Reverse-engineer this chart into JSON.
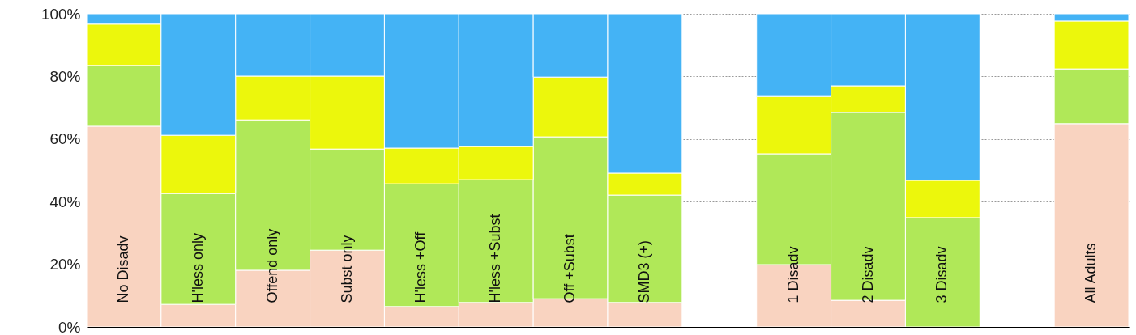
{
  "chart_data": {
    "type": "bar",
    "stacked": true,
    "categories": [
      "No Disadv",
      "H'less only",
      "Offend only",
      "Subst only",
      "H'less +Off",
      "H'less +Subst",
      "Off +Subst",
      "SMD3 (+)",
      null,
      "1 Disadv",
      "2 Disadv",
      "3 Disadv",
      null,
      "All Adults"
    ],
    "series": [
      {
        "color": "#f9d3c0",
        "values": [
          64.1,
          7.2,
          18.1,
          24.5,
          6.5,
          7.8,
          9.0,
          7.8,
          null,
          19.9,
          8.5,
          null,
          null,
          64.9
        ]
      },
      {
        "color": "#b0e858",
        "values": [
          19.4,
          35.4,
          48.0,
          32.3,
          39.2,
          39.2,
          51.7,
          34.3,
          null,
          35.4,
          60.0,
          34.9,
          null,
          17.5
        ]
      },
      {
        "color": "#ecf70c",
        "values": [
          13.2,
          18.6,
          14.0,
          23.3,
          11.4,
          10.6,
          19.1,
          7.0,
          null,
          18.3,
          8.5,
          11.9,
          null,
          15.3
        ]
      },
      {
        "color": "#44b3f5",
        "values": [
          3.3,
          38.8,
          19.9,
          19.9,
          42.9,
          42.4,
          20.2,
          50.9,
          null,
          26.4,
          23.0,
          53.2,
          null,
          2.3
        ]
      }
    ],
    "ylim": [
      0,
      100
    ],
    "yticks": [
      {
        "value": 0,
        "label": "0%"
      },
      {
        "value": 20,
        "label": "20%"
      },
      {
        "value": 40,
        "label": "40%"
      },
      {
        "value": 60,
        "label": "60%"
      },
      {
        "value": 80,
        "label": "80%"
      },
      {
        "value": 100,
        "label": "100%"
      }
    ],
    "grid": "y"
  }
}
